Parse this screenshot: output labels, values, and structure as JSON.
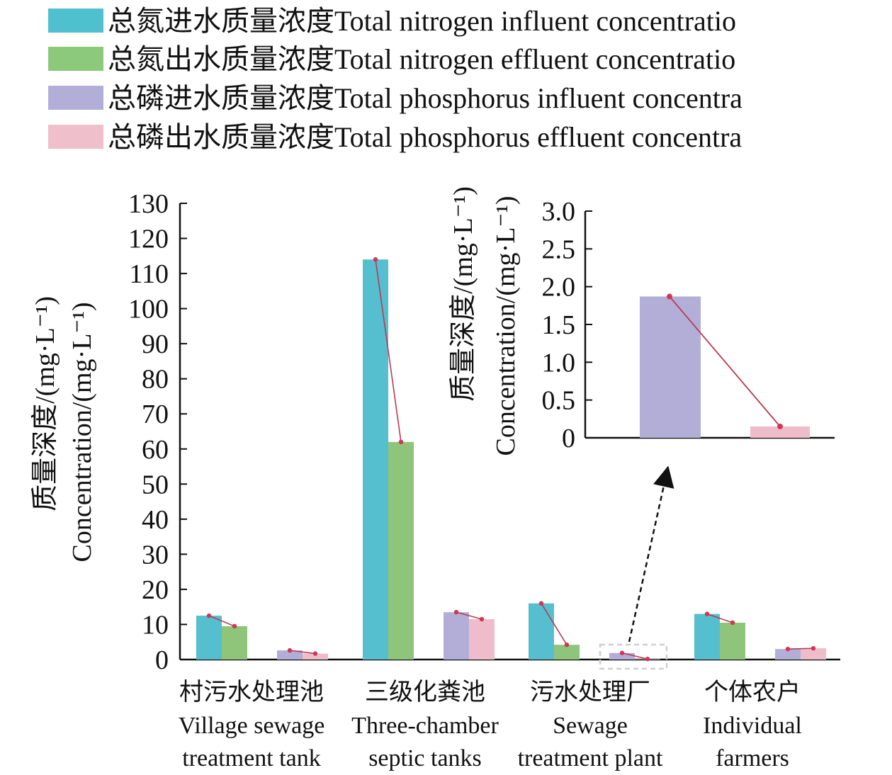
{
  "legend": [
    {
      "label": "总氮进水质量浓度Total nitrogen influent concentratio",
      "color": "#4fc0cd"
    },
    {
      "label": "总氮出水质量浓度Total nitrogen effluent concentratio",
      "color": "#8cc97a"
    },
    {
      "label": "总磷进水质量浓度Total phosphorus influent concentra",
      "color": "#b2aed8"
    },
    {
      "label": "总磷出水质量浓度Total phosphorus effluent concentra",
      "color": "#efbfcc"
    }
  ],
  "colors": {
    "tn_in_bar": "#55bfcf",
    "tn_out_bar": "#8ec57a",
    "tp_in_bar": "#b3aed8",
    "tp_out_bar": "#eebccb",
    "trend_line": "#b93a4e",
    "trend_dot": "#d43456",
    "axis": "#111111"
  },
  "chart_data": [
    {
      "type": "bar",
      "categories_zh": [
        "村污水处理池",
        "三级化粪池",
        "污水处理厂",
        "个体农户"
      ],
      "categories_en_line1": [
        "Village sewage",
        "Three-chamber",
        "Sewage",
        "Individual"
      ],
      "categories_en_line2": [
        "treatment tank",
        "septic tanks",
        "treatment plant",
        "farmers"
      ],
      "ylabel_zh": "质量深度/(mg·L⁻¹)",
      "ylabel_en": "Concentration/(mg·L⁻¹)",
      "ylim": [
        0,
        130
      ],
      "yticks": [
        0,
        10,
        20,
        30,
        40,
        50,
        60,
        70,
        80,
        90,
        100,
        110,
        120,
        130
      ],
      "series": [
        {
          "name": "总氮进水质量浓度Total nitrogen influent concentratio",
          "values": [
            12.5,
            114,
            16,
            13
          ]
        },
        {
          "name": "总氮出水质量浓度Total nitrogen effluent concentratio",
          "values": [
            9.5,
            62,
            4.2,
            10.5
          ]
        },
        {
          "name": "总磷进水质量浓度Total phosphorus influent concentra",
          "values": [
            2.6,
            13.5,
            1.87,
            3.0
          ]
        },
        {
          "name": "总磷出水质量浓度Total phosphorus effluent concentra",
          "values": [
            1.7,
            11.5,
            0.15,
            3.2
          ]
        }
      ]
    },
    {
      "type": "bar",
      "inset_of": "污水处理厂",
      "ylabel_zh": "质量深度/(mg·L⁻¹)",
      "ylabel_en": "Concentration/(mg·L⁻¹)",
      "ylim": [
        0,
        3.0
      ],
      "yticks": [
        "0",
        "0.5",
        "1.0",
        "1.5",
        "2.0",
        "2.5",
        "3.0"
      ],
      "series": [
        {
          "name": "总磷进水质量浓度Total phosphorus influent concentra",
          "values": [
            1.87
          ]
        },
        {
          "name": "总磷出水质量浓度Total phosphorus effluent concentra",
          "values": [
            0.15
          ]
        }
      ]
    }
  ]
}
